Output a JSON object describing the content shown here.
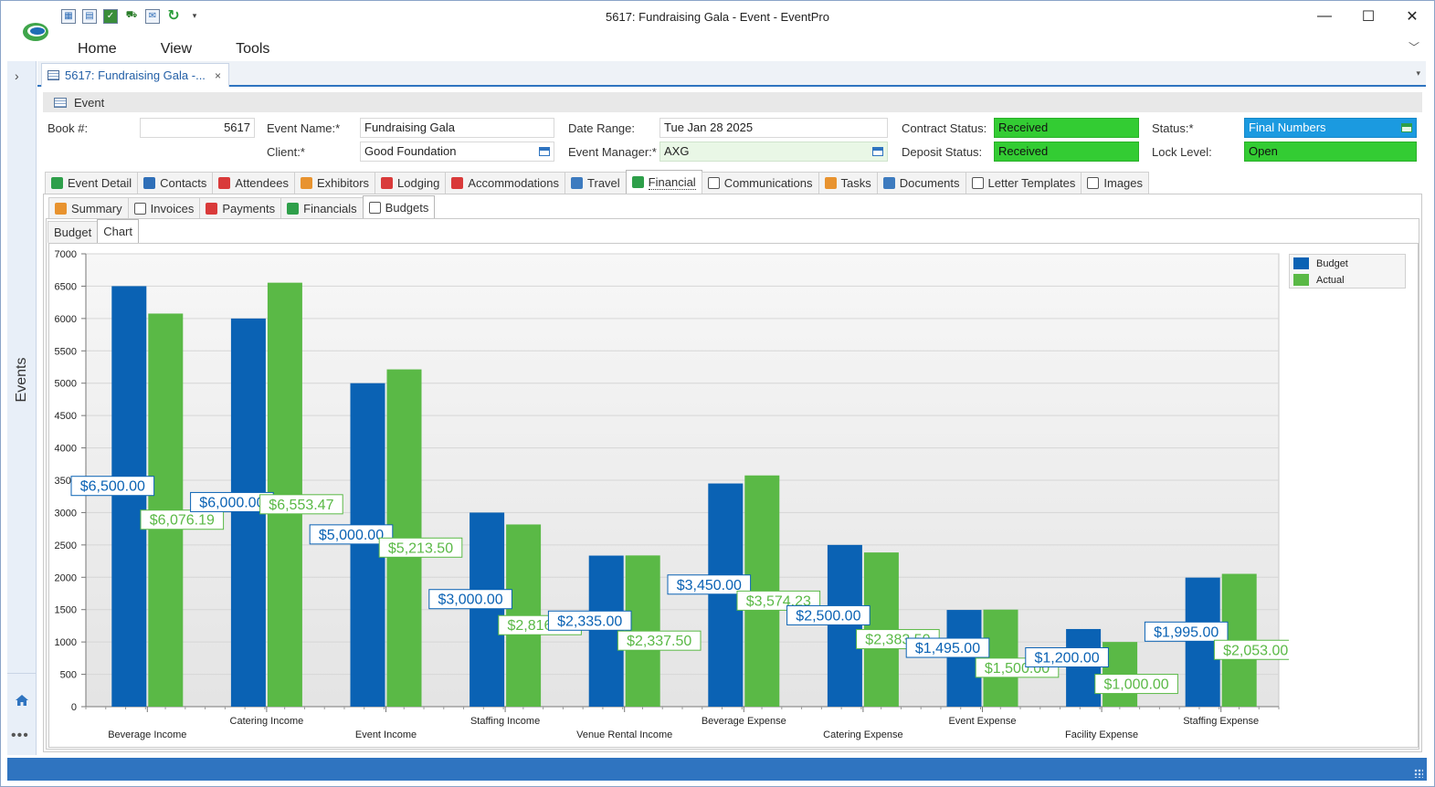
{
  "window": {
    "title": "5617: Fundraising Gala - Event - EventPro",
    "minimize": "—",
    "maximize": "☐",
    "close": "✕"
  },
  "menu": [
    "Home",
    "View",
    "Tools"
  ],
  "nav": {
    "label": "Events"
  },
  "document_tab": {
    "label": "5617: Fundraising Gala -...",
    "close": "×"
  },
  "event_group": {
    "title": "Event"
  },
  "fields": {
    "book_label": "Book #:",
    "book_value": "5617",
    "event_name_label": "Event Name:*",
    "event_name_value": "Fundraising Gala",
    "client_label": "Client:*",
    "client_value": "Good Foundation",
    "date_range_label": "Date Range:",
    "date_range_value": "Tue Jan 28 2025",
    "event_manager_label": "Event Manager:*",
    "event_manager_value": "AXG",
    "contract_status_label": "Contract Status:",
    "contract_status_value": "Received",
    "deposit_status_label": "Deposit Status:",
    "deposit_status_value": "Received",
    "status_label": "Status:*",
    "status_value": "Final Numbers",
    "lock_level_label": "Lock Level:",
    "lock_level_value": "Open"
  },
  "main_tabs": [
    "Event Detail",
    "Contacts",
    "Attendees",
    "Exhibitors",
    "Lodging",
    "Accommodations",
    "Travel",
    "Financial",
    "Communications",
    "Tasks",
    "Documents",
    "Letter Templates",
    "Images"
  ],
  "financial_tabs": [
    "Summary",
    "Invoices",
    "Payments",
    "Financials",
    "Budgets"
  ],
  "budget_tabs": [
    "Budget",
    "Chart"
  ],
  "colors": {
    "budget": "#0a62b4",
    "actual": "#5ab946",
    "status_green": "#33cc33",
    "status_blue": "#1b9ae0",
    "accent": "#2f74c0"
  },
  "chart_data": {
    "type": "bar",
    "categories": [
      "Beverage Income",
      "Catering Income",
      "Event Income",
      "Staffing Income",
      "Venue Rental Income",
      "Beverage Expense",
      "Catering Expense",
      "Event Expense",
      "Facility Expense",
      "Staffing Expense"
    ],
    "series": [
      {
        "name": "Budget",
        "values": [
          6500,
          6000,
          5000,
          3000,
          2335,
          3450,
          2500,
          1495,
          1200,
          1995
        ],
        "labels": [
          "$6,500.00",
          "$6,000.00",
          "$5,000.00",
          "$3,000.00",
          "$2,335.00",
          "$3,450.00",
          "$2,500.00",
          "$1,495.00",
          "$1,200.00",
          "$1,995.00"
        ]
      },
      {
        "name": "Actual",
        "values": [
          6076.19,
          6553.47,
          5213.5,
          2816.25,
          2337.5,
          3574.23,
          2383.5,
          1500,
          1000,
          2053
        ],
        "labels": [
          "$6,076.19",
          "$6,553.47",
          "$5,213.50",
          "$2,816.25",
          "$2,337.50",
          "$3,574.23",
          "$2,383.50",
          "$1,500.00",
          "$1,000.00",
          "$2,053.00"
        ]
      }
    ],
    "ylim": [
      0,
      7000
    ],
    "yticks": [
      "0",
      "500",
      "1000",
      "1500",
      "2000",
      "2500",
      "3000",
      "3500",
      "4000",
      "4500",
      "5000",
      "5500",
      "6000",
      "6500",
      "7000"
    ],
    "legend_position": "top-right",
    "grid": true
  }
}
